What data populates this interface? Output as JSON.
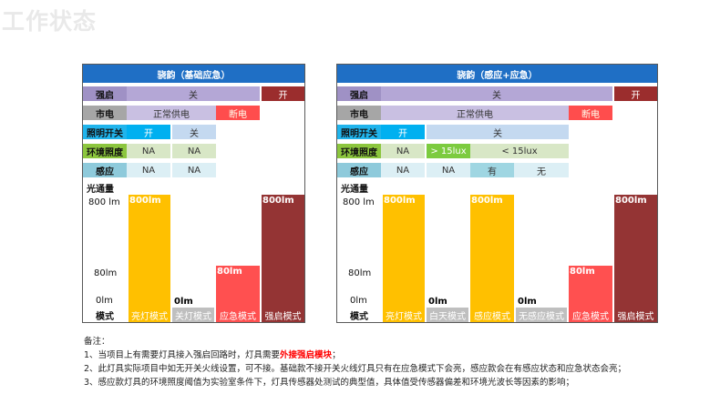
{
  "page_title": "工作状态",
  "panels": [
    {
      "header": "骁韵（基础应急）",
      "rows": {
        "qiangqi": {
          "label": "强启",
          "cells": [
            "关",
            "开"
          ]
        },
        "shidian": {
          "label": "市电",
          "cells": [
            "正常供电",
            "断电"
          ]
        },
        "zhaoming": {
          "label": "照明开关",
          "cells": [
            "开",
            "关"
          ]
        },
        "huanjing": {
          "label": "环境照度",
          "cells": [
            "NA",
            "NA"
          ]
        },
        "ganying": {
          "label": "感应",
          "cells": [
            "NA",
            "NA"
          ]
        }
      },
      "y_title": "光通量",
      "y_ticks": [
        "800 lm",
        "80lm",
        "0lm"
      ],
      "bars": [
        {
          "label": "800lm",
          "value": 800
        },
        {
          "label": "0lm",
          "value": 0
        },
        {
          "label": "80lm",
          "value": 80
        },
        {
          "label": "800lm",
          "value": 800
        }
      ],
      "mode_label": "模式",
      "modes": [
        "亮灯模式",
        "关灯模式",
        "应急模式",
        "强启模式"
      ]
    },
    {
      "header": "骁韵（感应+应急）",
      "rows": {
        "qiangqi": {
          "label": "强启",
          "cells": [
            "关",
            "开"
          ]
        },
        "shidian": {
          "label": "市电",
          "cells": [
            "正常供电",
            "断电"
          ]
        },
        "zhaoming": {
          "label": "照明开关",
          "cells": [
            "开",
            "关"
          ]
        },
        "huanjing": {
          "label": "环境照度",
          "cells": [
            "NA",
            "> 15lux",
            "< 15lux"
          ]
        },
        "ganying": {
          "label": "感应",
          "cells": [
            "NA",
            "NA",
            "有",
            "无"
          ]
        }
      },
      "y_title": "光通量",
      "y_ticks": [
        "800 lm",
        "80lm",
        "0lm"
      ],
      "bars": [
        {
          "label": "800lm",
          "value": 800
        },
        {
          "label": "0lm",
          "value": 0
        },
        {
          "label": "800lm",
          "value": 800
        },
        {
          "label": "0lm",
          "value": 0
        },
        {
          "label": "80lm",
          "value": 80
        },
        {
          "label": "800lm",
          "value": 800
        }
      ],
      "mode_label": "模式",
      "modes": [
        "亮灯模式",
        "白天模式",
        "感应模式",
        "无感应模式",
        "应急模式",
        "强启模式"
      ]
    }
  ],
  "notes": {
    "heading": "备注：",
    "n1_pre": "1、当项目上有需要灯具接入强启回路时，灯具需要",
    "n1_hl": "外接强启模块",
    "n1_post": "；",
    "n2": "2、此灯具实际项目中如无开关火线设置，可不接。基础款不接开关火线灯具只有在应急模式下会亮，感应款会在有感应状态和应急状态会亮；",
    "n3": "3、感应款灯具的环境照度阈值为实验室条件下，灯具传感器处测试的典型值，具体值受传感器偏差和环境光波长等因素的影响；"
  }
}
